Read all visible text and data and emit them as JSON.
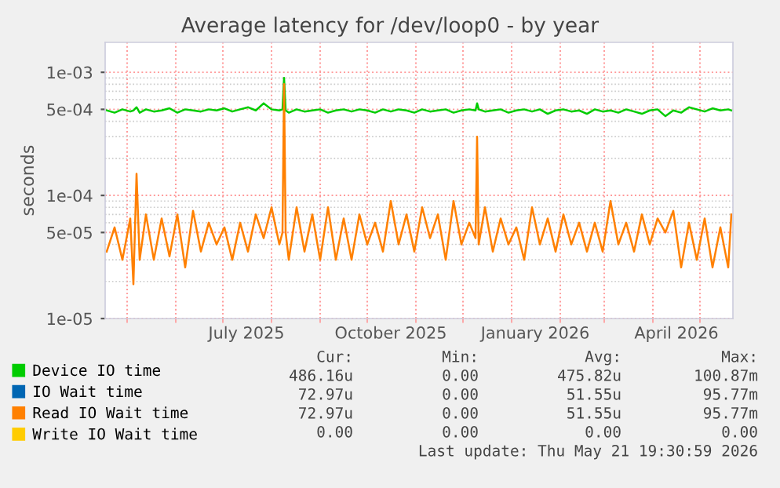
{
  "chart_data": {
    "type": "line",
    "title": "Average latency for /dev/loop0 - by year",
    "ylabel": "seconds",
    "log": "y",
    "grid": true,
    "legend": "bottom",
    "marker": "none",
    "line_style": "solid",
    "x": [
      "2025-04-18",
      "2025-04-23",
      "2025-04-28",
      "2025-05-03",
      "2025-05-05",
      "2025-05-07",
      "2025-05-09",
      "2025-05-13",
      "2025-05-18",
      "2025-05-23",
      "2025-05-28",
      "2025-06-02",
      "2025-06-07",
      "2025-06-12",
      "2025-06-17",
      "2025-06-22",
      "2025-06-27",
      "2025-07-02",
      "2025-07-07",
      "2025-07-12",
      "2025-07-17",
      "2025-07-22",
      "2025-07-27",
      "2025-08-01",
      "2025-08-06",
      "2025-08-08",
      "2025-08-09",
      "2025-08-10",
      "2025-08-12",
      "2025-08-17",
      "2025-08-22",
      "2025-08-27",
      "2025-09-01",
      "2025-09-06",
      "2025-09-11",
      "2025-09-16",
      "2025-09-21",
      "2025-09-26",
      "2025-10-01",
      "2025-10-06",
      "2025-10-11",
      "2025-10-16",
      "2025-10-21",
      "2025-10-26",
      "2025-10-31",
      "2025-11-05",
      "2025-11-10",
      "2025-11-15",
      "2025-11-20",
      "2025-11-25",
      "2025-11-30",
      "2025-12-05",
      "2025-12-09",
      "2025-12-10",
      "2025-12-11",
      "2025-12-15",
      "2025-12-20",
      "2025-12-25",
      "2025-12-30",
      "2026-01-04",
      "2026-01-09",
      "2026-01-14",
      "2026-01-19",
      "2026-01-24",
      "2026-01-29",
      "2026-02-03",
      "2026-02-08",
      "2026-02-13",
      "2026-02-18",
      "2026-02-23",
      "2026-02-28",
      "2026-03-05",
      "2026-03-10",
      "2026-03-15",
      "2026-03-20",
      "2026-03-25",
      "2026-03-30",
      "2026-04-04",
      "2026-04-09",
      "2026-04-14",
      "2026-04-19",
      "2026-04-24",
      "2026-04-29",
      "2026-05-04",
      "2026-05-09",
      "2026-05-14",
      "2026-05-19",
      "2026-05-21"
    ],
    "series": [
      {
        "name": "Device IO time",
        "color": "#00cc00",
        "values": [
          0.00049,
          0.00047,
          0.0005,
          0.00048,
          0.00049,
          0.00052,
          0.00047,
          0.0005,
          0.00048,
          0.00049,
          0.00051,
          0.00047,
          0.0005,
          0.00049,
          0.00048,
          0.0005,
          0.00049,
          0.00051,
          0.00048,
          0.0005,
          0.00052,
          0.00049,
          0.00056,
          0.0005,
          0.00049,
          0.0005,
          0.0009,
          0.00049,
          0.00047,
          0.0005,
          0.00048,
          0.00049,
          0.0005,
          0.00047,
          0.00049,
          0.0005,
          0.00048,
          0.0005,
          0.00049,
          0.00047,
          0.0005,
          0.00048,
          0.0005,
          0.00049,
          0.00047,
          0.0005,
          0.00048,
          0.00049,
          0.0005,
          0.00047,
          0.00049,
          0.0005,
          0.00049,
          0.00056,
          0.0005,
          0.00048,
          0.00049,
          0.0005,
          0.00047,
          0.00049,
          0.0005,
          0.00048,
          0.0005,
          0.00046,
          0.00049,
          0.0005,
          0.00048,
          0.00049,
          0.00046,
          0.0005,
          0.00048,
          0.00049,
          0.00047,
          0.0005,
          0.00048,
          0.00046,
          0.00049,
          0.0005,
          0.00044,
          0.00049,
          0.00047,
          0.00052,
          0.0005,
          0.00048,
          0.00051,
          0.00049,
          0.0005,
          0.00049
        ]
      },
      {
        "name": "IO Wait time",
        "color": "#0066b3",
        "values": [
          null,
          null,
          null,
          null,
          null,
          null,
          null,
          null,
          null,
          null,
          null,
          null,
          null,
          null,
          null,
          null,
          null,
          null,
          null,
          null,
          null,
          null,
          null,
          null,
          null,
          null,
          null,
          null,
          null,
          null,
          null,
          null,
          null,
          null,
          null,
          null,
          null,
          null,
          null,
          null,
          null,
          null,
          null,
          null,
          null,
          null,
          null,
          null,
          null,
          null,
          null,
          null,
          null,
          null,
          null,
          null,
          null,
          null,
          null,
          null,
          null,
          null,
          null,
          null,
          null,
          null,
          null,
          null,
          null,
          null,
          null,
          null,
          null,
          null,
          null,
          null,
          null,
          null,
          null,
          null,
          null,
          null,
          null,
          null,
          null,
          null,
          null,
          null
        ]
      },
      {
        "name": "Read IO Wait time",
        "color": "#ff8000",
        "values": [
          3.5e-05,
          5.5e-05,
          3e-05,
          6.5e-05,
          1.9e-05,
          0.00015,
          3e-05,
          7e-05,
          3e-05,
          6.5e-05,
          3.2e-05,
          7e-05,
          2.6e-05,
          7.5e-05,
          3.5e-05,
          6e-05,
          4e-05,
          5.5e-05,
          3e-05,
          6e-05,
          3.5e-05,
          7e-05,
          4.5e-05,
          8e-05,
          4e-05,
          5e-05,
          0.0008,
          5e-05,
          3e-05,
          8e-05,
          3.5e-05,
          7e-05,
          3e-05,
          8e-05,
          3e-05,
          6.5e-05,
          3e-05,
          7e-05,
          4e-05,
          6e-05,
          3.5e-05,
          9e-05,
          4e-05,
          7e-05,
          3.5e-05,
          8e-05,
          4.5e-05,
          7e-05,
          3e-05,
          9e-05,
          4e-05,
          6e-05,
          4.5e-05,
          0.0003,
          4e-05,
          8e-05,
          3.5e-05,
          6.5e-05,
          4e-05,
          5.5e-05,
          3e-05,
          8e-05,
          4e-05,
          6.5e-05,
          3.5e-05,
          7e-05,
          4e-05,
          6e-05,
          3.5e-05,
          6e-05,
          3.5e-05,
          9e-05,
          4e-05,
          6e-05,
          3.5e-05,
          7e-05,
          4e-05,
          6.5e-05,
          5e-05,
          7.5e-05,
          2.6e-05,
          6e-05,
          3e-05,
          6.5e-05,
          2.6e-05,
          5.5e-05,
          2.6e-05,
          7e-05
        ]
      },
      {
        "name": "Write IO Wait time",
        "color": "#ffcc00",
        "values": [
          null,
          null,
          null,
          null,
          null,
          null,
          null,
          null,
          null,
          null,
          null,
          null,
          null,
          null,
          null,
          null,
          null,
          null,
          null,
          null,
          null,
          null,
          null,
          null,
          null,
          null,
          null,
          null,
          null,
          null,
          null,
          null,
          null,
          null,
          null,
          null,
          null,
          null,
          null,
          null,
          null,
          null,
          null,
          null,
          null,
          null,
          null,
          null,
          null,
          null,
          null,
          null,
          null,
          null,
          null,
          null,
          null,
          null,
          null,
          null,
          null,
          null,
          null,
          null,
          null,
          null,
          null,
          null,
          null,
          null,
          null,
          null,
          null,
          null,
          null,
          null,
          null,
          null,
          null,
          null,
          null,
          null,
          null,
          null,
          null,
          null,
          null,
          null
        ]
      }
    ],
    "xlim": [
      "2025-04-17",
      "2026-05-22"
    ],
    "xticks": [
      {
        "value": "2025-05-01",
        "label": null
      },
      {
        "value": "2025-06-01",
        "label": null
      },
      {
        "value": "2025-07-01",
        "label": null
      },
      {
        "value": "2025-07-16",
        "label": "July 2025"
      },
      {
        "value": "2025-08-01",
        "label": null
      },
      {
        "value": "2025-09-01",
        "label": null
      },
      {
        "value": "2025-10-01",
        "label": null
      },
      {
        "value": "2025-10-16",
        "label": "October 2025"
      },
      {
        "value": "2025-11-01",
        "label": null
      },
      {
        "value": "2025-12-01",
        "label": null
      },
      {
        "value": "2026-01-01",
        "label": null
      },
      {
        "value": "2026-01-16",
        "label": "January 2026"
      },
      {
        "value": "2026-02-01",
        "label": null
      },
      {
        "value": "2026-03-01",
        "label": null
      },
      {
        "value": "2026-04-01",
        "label": null
      },
      {
        "value": "2026-04-16",
        "label": "April 2026"
      },
      {
        "value": "2026-05-01",
        "label": null
      }
    ],
    "ylim": [
      1e-05,
      0.00175
    ],
    "yticks": [
      {
        "value": 1e-05,
        "label": "1e-05"
      },
      {
        "value": 5e-05,
        "label": "5e-05"
      },
      {
        "value": 0.0001,
        "label": "1e-04"
      },
      {
        "value": 0.0005,
        "label": "5e-04"
      },
      {
        "value": 0.001,
        "label": "1e-03"
      }
    ],
    "annotations": [
      "Cur:",
      "Min:",
      "Avg:",
      "Max:",
      "486.16u",
      "0.00",
      "475.82u",
      "100.87m",
      "72.97u",
      "0.00",
      "51.55u",
      "95.77m",
      "72.97u",
      "0.00",
      "51.55u",
      "95.77m",
      "0.00",
      "0.00",
      "0.00",
      "0.00",
      "Last update: Thu May 21 19:30:59 2026"
    ]
  }
}
